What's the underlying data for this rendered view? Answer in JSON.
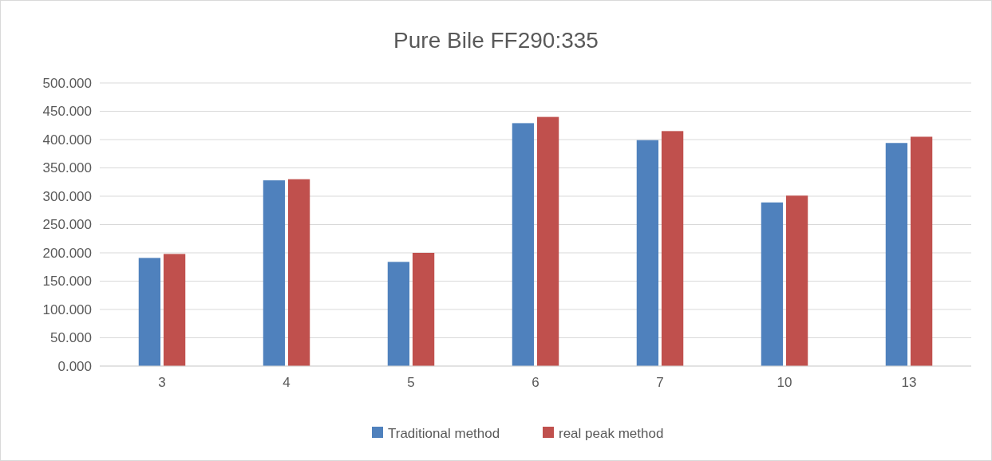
{
  "chart_data": {
    "type": "bar",
    "title": "Pure Bile FF290:335",
    "categories": [
      "3",
      "4",
      "5",
      "6",
      "7",
      "10",
      "13"
    ],
    "series": [
      {
        "name": "Traditional method",
        "color": "#4f81bd",
        "values": [
          191,
          328,
          184,
          429,
          399,
          289,
          394
        ]
      },
      {
        "name": "real peak method",
        "color": "#c0504d",
        "values": [
          198,
          330,
          200,
          440,
          415,
          301,
          405
        ]
      }
    ],
    "ylim": [
      0,
      500
    ],
    "yticks": [
      {
        "value": 0,
        "label": "0.000"
      },
      {
        "value": 50,
        "label": "50.000"
      },
      {
        "value": 100,
        "label": "100.000"
      },
      {
        "value": 150,
        "label": "150.000"
      },
      {
        "value": 200,
        "label": "200.000"
      },
      {
        "value": 250,
        "label": "250.000"
      },
      {
        "value": 300,
        "label": "300.000"
      },
      {
        "value": 350,
        "label": "350.000"
      },
      {
        "value": 400,
        "label": "400.000"
      },
      {
        "value": 450,
        "label": "450.000"
      },
      {
        "value": 500,
        "label": "500.000"
      }
    ],
    "grid": "y",
    "legend": "bottom"
  }
}
